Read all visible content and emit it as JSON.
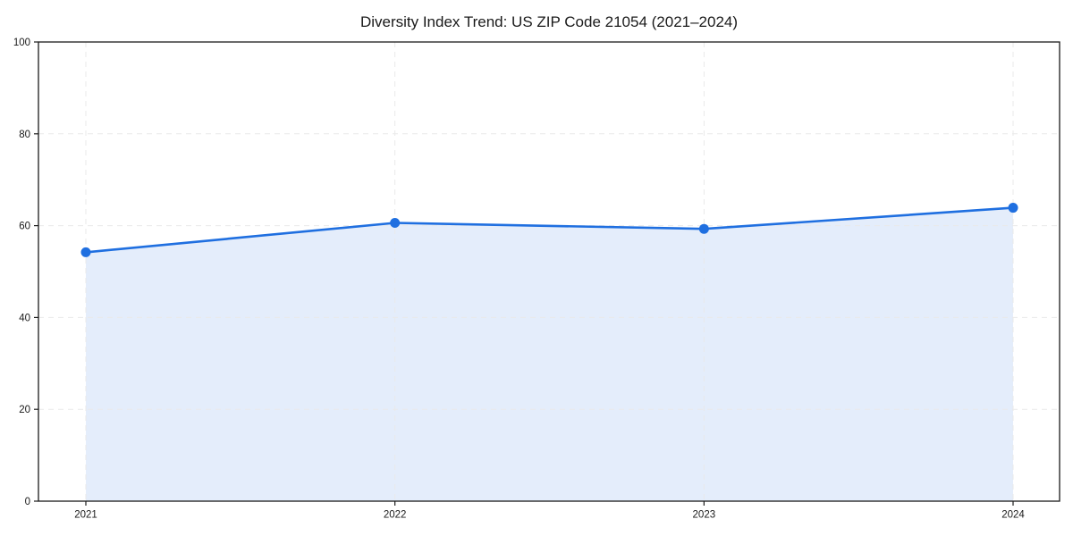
{
  "chart_data": {
    "type": "line",
    "title": "Diversity Index Trend: US ZIP Code 21054 (2021–2024)",
    "xlabel": "",
    "ylabel": "",
    "categories": [
      "2021",
      "2022",
      "2023",
      "2024"
    ],
    "series": [
      {
        "name": "Diversity Index",
        "values": [
          54.2,
          60.6,
          59.3,
          63.9
        ]
      }
    ],
    "ylim": [
      0,
      100
    ],
    "yticks": [
      0,
      20,
      40,
      60,
      80,
      100
    ],
    "grid": true,
    "grid_style": "dashed",
    "legend": "none",
    "marker": "circle",
    "area_fill": true,
    "colors": {
      "line": "#1f6fe0",
      "marker": "#1f6fe0",
      "area_fill": "rgba(31, 111, 224, 0.12)",
      "grid": "#e9e9e9",
      "spine": "#1a1a1a",
      "text": "#1a1a1a",
      "background": "#ffffff"
    }
  }
}
